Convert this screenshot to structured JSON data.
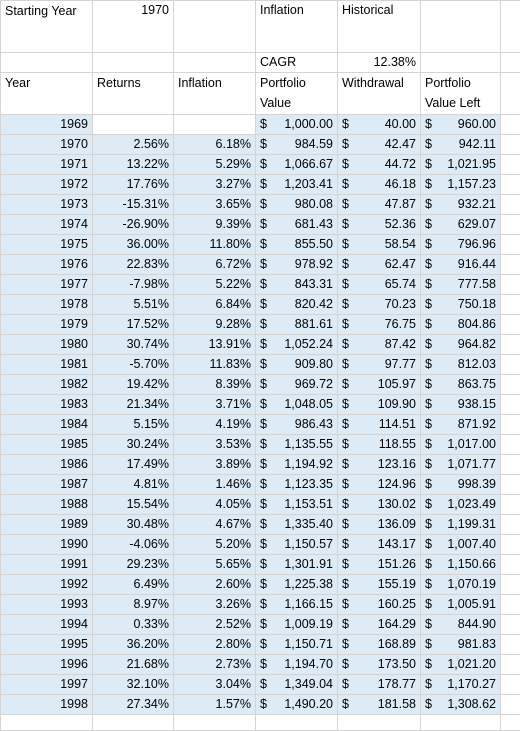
{
  "header": {
    "starting_label": "Starting Year",
    "starting_value": "1970",
    "inflation_label": "Inflation",
    "inflation_value": "Historical",
    "cagr_label": "CAGR",
    "cagr_value": "12.38%"
  },
  "columns": [
    "Year",
    "Returns",
    "Inflation",
    "Portfolio Value",
    "Withdrawal",
    "Portfolio Value Left"
  ],
  "currency_symbol": "$",
  "rows": [
    [
      "1969",
      null,
      null,
      "1,000.00",
      "40.00",
      "960.00"
    ],
    [
      "1970",
      "2.56%",
      "6.18%",
      "984.59",
      "42.47",
      "942.11"
    ],
    [
      "1971",
      "13.22%",
      "5.29%",
      "1,066.67",
      "44.72",
      "1,021.95"
    ],
    [
      "1972",
      "17.76%",
      "3.27%",
      "1,203.41",
      "46.18",
      "1,157.23"
    ],
    [
      "1973",
      "-15.31%",
      "3.65%",
      "980.08",
      "47.87",
      "932.21"
    ],
    [
      "1974",
      "-26.90%",
      "9.39%",
      "681.43",
      "52.36",
      "629.07"
    ],
    [
      "1975",
      "36.00%",
      "11.80%",
      "855.50",
      "58.54",
      "796.96"
    ],
    [
      "1976",
      "22.83%",
      "6.72%",
      "978.92",
      "62.47",
      "916.44"
    ],
    [
      "1977",
      "-7.98%",
      "5.22%",
      "843.31",
      "65.74",
      "777.58"
    ],
    [
      "1978",
      "5.51%",
      "6.84%",
      "820.42",
      "70.23",
      "750.18"
    ],
    [
      "1979",
      "17.52%",
      "9.28%",
      "881.61",
      "76.75",
      "804.86"
    ],
    [
      "1980",
      "30.74%",
      "13.91%",
      "1,052.24",
      "87.42",
      "964.82"
    ],
    [
      "1981",
      "-5.70%",
      "11.83%",
      "909.80",
      "97.77",
      "812.03"
    ],
    [
      "1982",
      "19.42%",
      "8.39%",
      "969.72",
      "105.97",
      "863.75"
    ],
    [
      "1983",
      "21.34%",
      "3.71%",
      "1,048.05",
      "109.90",
      "938.15"
    ],
    [
      "1984",
      "5.15%",
      "4.19%",
      "986.43",
      "114.51",
      "871.92"
    ],
    [
      "1985",
      "30.24%",
      "3.53%",
      "1,135.55",
      "118.55",
      "1,017.00"
    ],
    [
      "1986",
      "17.49%",
      "3.89%",
      "1,194.92",
      "123.16",
      "1,071.77"
    ],
    [
      "1987",
      "4.81%",
      "1.46%",
      "1,123.35",
      "124.96",
      "998.39"
    ],
    [
      "1988",
      "15.54%",
      "4.05%",
      "1,153.51",
      "130.02",
      "1,023.49"
    ],
    [
      "1989",
      "30.48%",
      "4.67%",
      "1,335.40",
      "136.09",
      "1,199.31"
    ],
    [
      "1990",
      "-4.06%",
      "5.20%",
      "1,150.57",
      "143.17",
      "1,007.40"
    ],
    [
      "1991",
      "29.23%",
      "5.65%",
      "1,301.91",
      "151.26",
      "1,150.66"
    ],
    [
      "1992",
      "6.49%",
      "2.60%",
      "1,225.38",
      "155.19",
      "1,070.19"
    ],
    [
      "1993",
      "8.97%",
      "3.26%",
      "1,166.15",
      "160.25",
      "1,005.91"
    ],
    [
      "1994",
      "0.33%",
      "2.52%",
      "1,009.19",
      "164.29",
      "844.90"
    ],
    [
      "1995",
      "36.20%",
      "2.80%",
      "1,150.71",
      "168.89",
      "981.83"
    ],
    [
      "1996",
      "21.68%",
      "2.73%",
      "1,194.70",
      "173.50",
      "1,021.20"
    ],
    [
      "1997",
      "32.10%",
      "3.04%",
      "1,349.04",
      "178.77",
      "1,170.27"
    ],
    [
      "1998",
      "27.34%",
      "1.57%",
      "1,490.20",
      "181.58",
      "1,308.62"
    ]
  ]
}
